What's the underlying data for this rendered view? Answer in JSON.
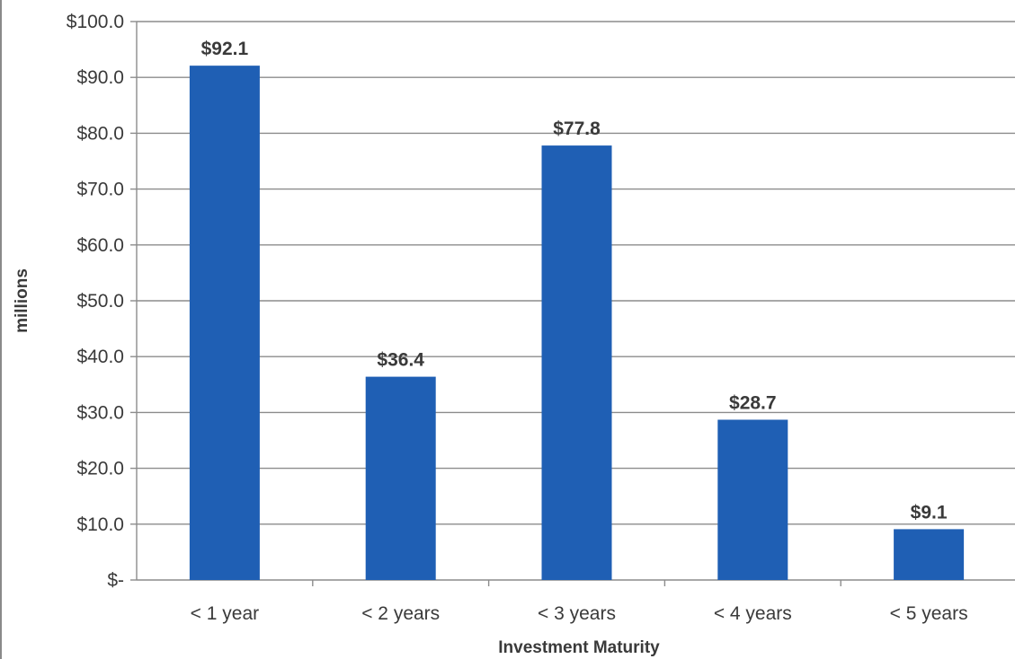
{
  "chart_data": {
    "type": "bar",
    "title": "",
    "xlabel": "Investment Maturity",
    "ylabel": "millions",
    "categories": [
      "< 1 year",
      "< 2 years",
      "< 3 years",
      "< 4 years",
      "< 5 years"
    ],
    "values": [
      92.1,
      36.4,
      77.8,
      28.7,
      9.1
    ],
    "data_labels": [
      "$92.1",
      "$36.4",
      "$77.8",
      "$28.7",
      "$9.1"
    ],
    "y_ticks": [
      {
        "value": 0,
        "label": "$-"
      },
      {
        "value": 10,
        "label": "$10.0"
      },
      {
        "value": 20,
        "label": "$20.0"
      },
      {
        "value": 30,
        "label": "$30.0"
      },
      {
        "value": 40,
        "label": "$40.0"
      },
      {
        "value": 50,
        "label": "$50.0"
      },
      {
        "value": 60,
        "label": "$60.0"
      },
      {
        "value": 70,
        "label": "$70.0"
      },
      {
        "value": 80,
        "label": "$80.0"
      },
      {
        "value": 90,
        "label": "$90.0"
      },
      {
        "value": 100,
        "label": "$100.0"
      }
    ],
    "ylim": [
      0,
      100
    ],
    "grid": true,
    "legend": "none",
    "bar_color": "#1f5fb4",
    "grid_color": "#8c8c8c",
    "axis_color": "#8c8c8c"
  }
}
